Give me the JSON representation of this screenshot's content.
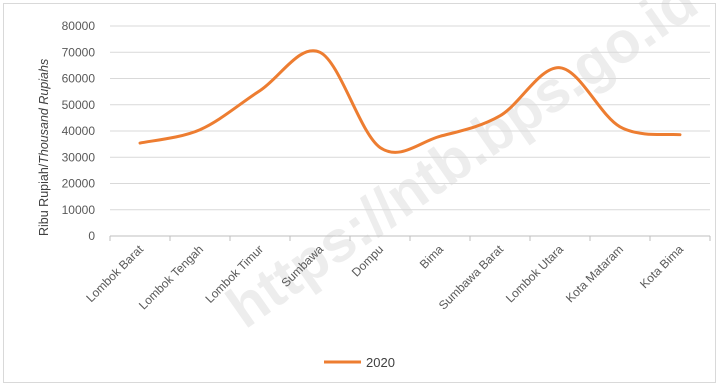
{
  "chart_data": {
    "type": "line",
    "title": "",
    "xlabel": "",
    "ylabel": "Ribu Rupiah/",
    "ylabel_italic": "Thousand Rupiahs",
    "ylim": [
      0,
      80000
    ],
    "yticks": [
      "0",
      "10000",
      "20000",
      "30000",
      "40000",
      "50000",
      "60000",
      "70000",
      "80000"
    ],
    "ytick_values": [
      0,
      10000,
      20000,
      30000,
      40000,
      50000,
      60000,
      70000,
      80000
    ],
    "categories": [
      "Lombok Barat",
      "Lombok Tengah",
      "Lombok Timur",
      "Sumbawa",
      "Dompu",
      "Bima",
      "Sumbawa Barat",
      "Lombok Utara",
      "Kota Mataram",
      "Kota Bima"
    ],
    "series": [
      {
        "name": "2020",
        "color": "#ED7D31",
        "values": [
          35400,
          40500,
          55400,
          70000,
          33700,
          38000,
          45800,
          64100,
          41600,
          38600
        ]
      }
    ],
    "grid": true,
    "legend": "bottom",
    "watermark": "https://ntb.bps.go.id"
  }
}
